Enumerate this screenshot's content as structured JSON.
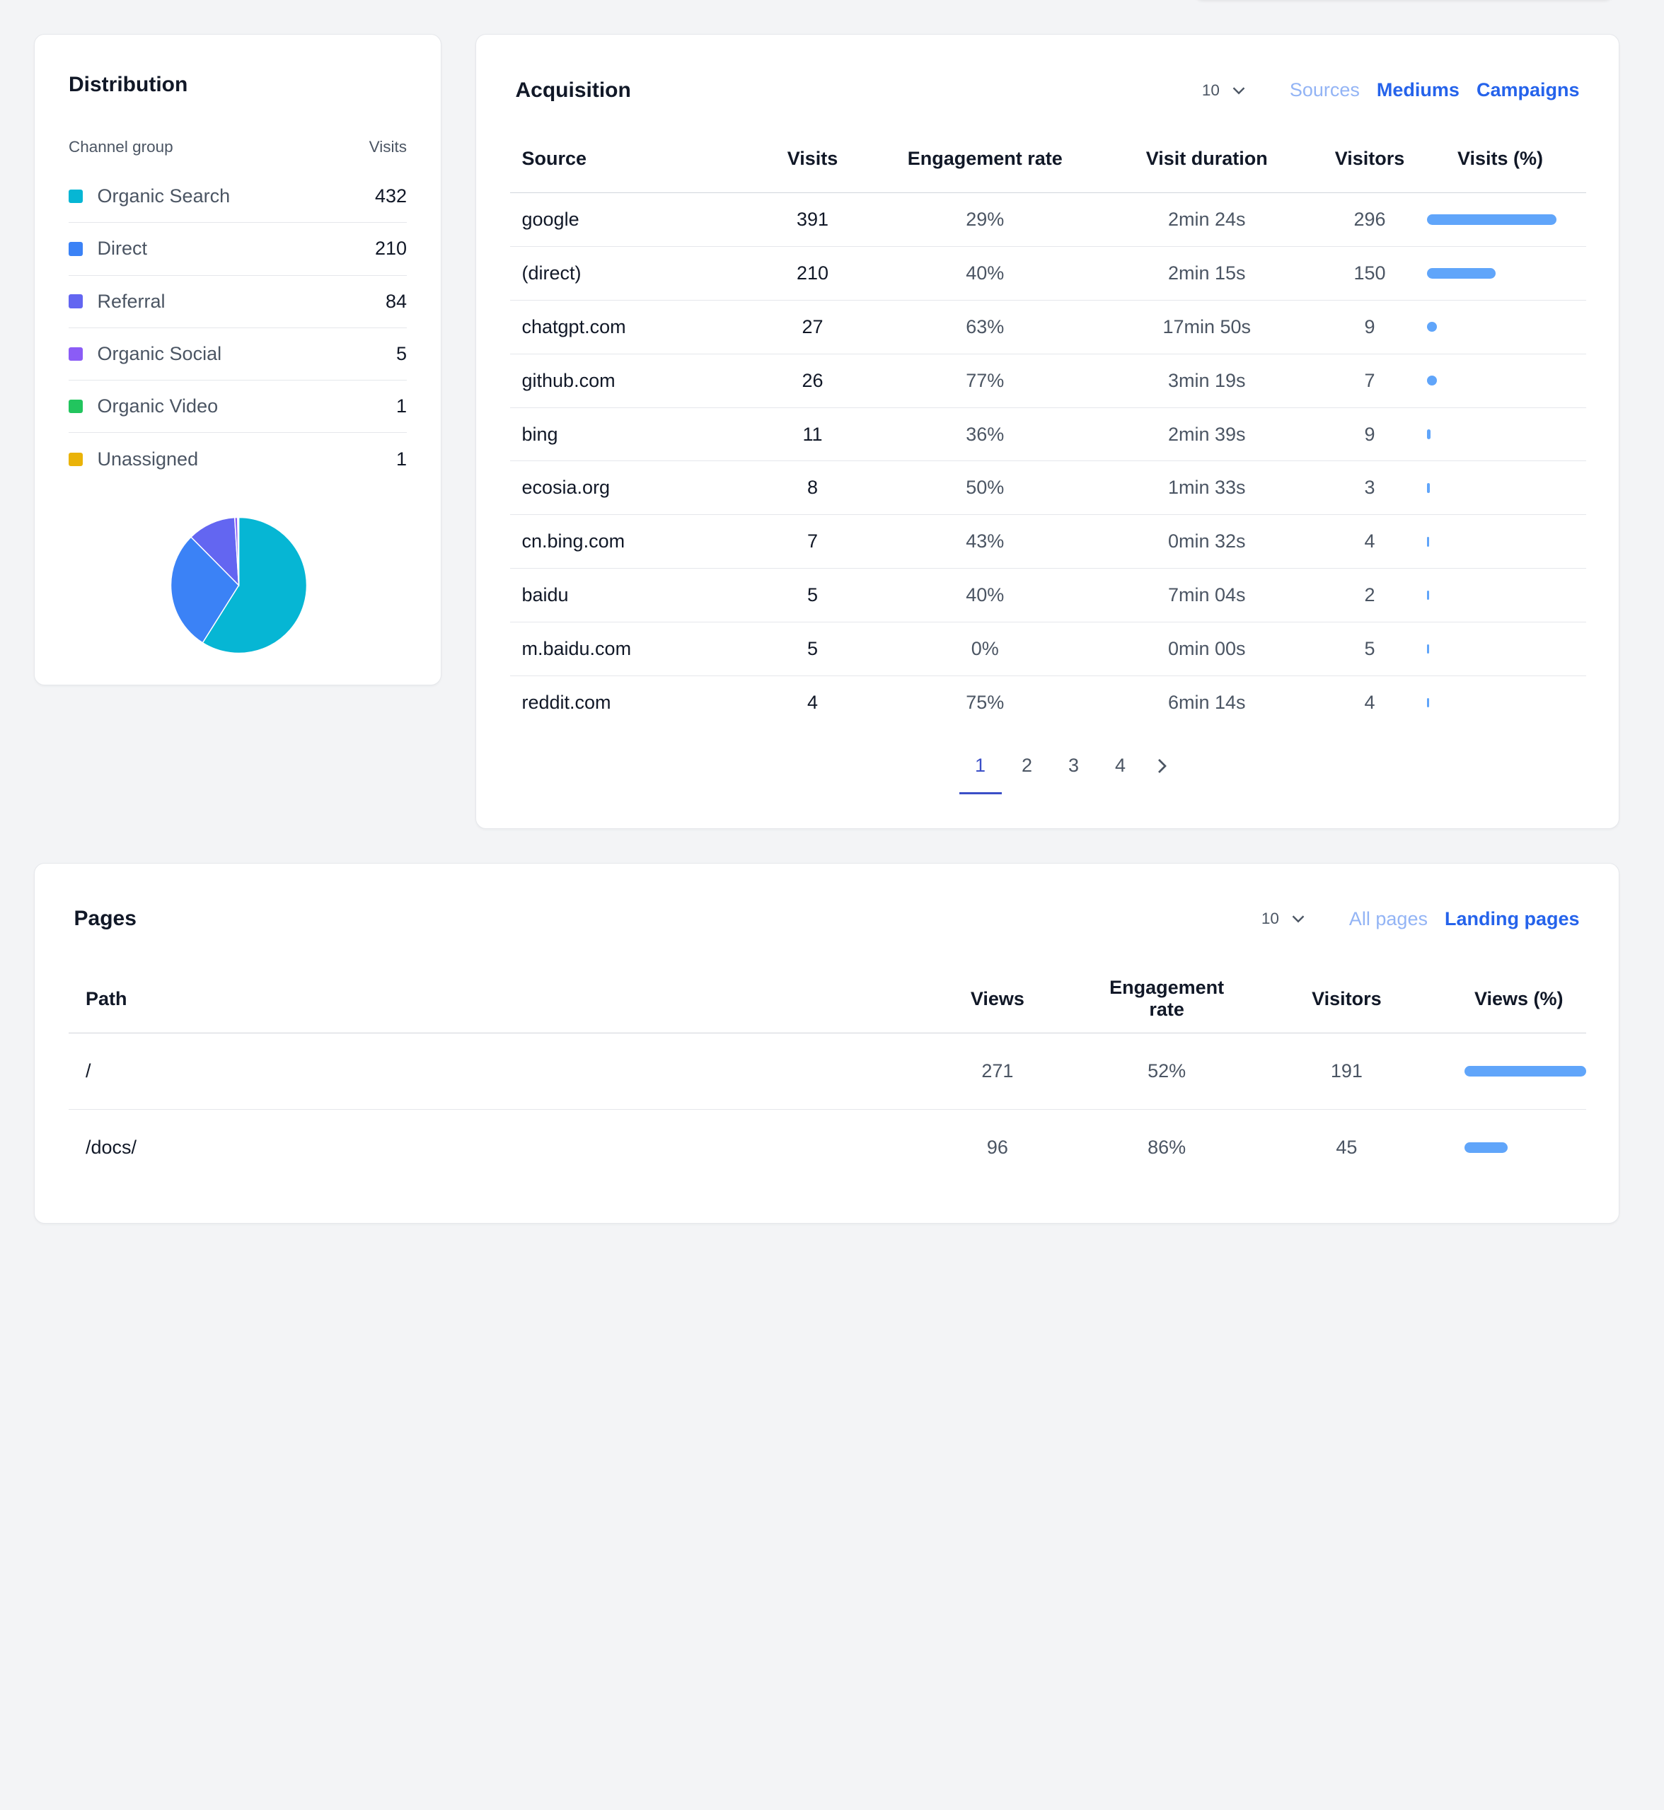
{
  "distribution": {
    "title": "Distribution",
    "col_channel": "Channel group",
    "col_visits": "Visits",
    "items": [
      {
        "name": "Organic Search",
        "value": "432",
        "color": "#06b6d4"
      },
      {
        "name": "Direct",
        "value": "210",
        "color": "#3b82f6"
      },
      {
        "name": "Referral",
        "value": "84",
        "color": "#6366f1"
      },
      {
        "name": "Organic Social",
        "value": "5",
        "color": "#8b5cf6"
      },
      {
        "name": "Organic Video",
        "value": "1",
        "color": "#22c55e"
      },
      {
        "name": "Unassigned",
        "value": "1",
        "color": "#eab308"
      }
    ]
  },
  "acquisition": {
    "title": "Acquisition",
    "page_size": "10",
    "tabs": [
      "Sources",
      "Mediums",
      "Campaigns"
    ],
    "columns": [
      "Source",
      "Visits",
      "Engagement rate",
      "Visit duration",
      "Visitors",
      "Visits (%)"
    ],
    "rows": [
      {
        "source": "google",
        "visits": "391",
        "engagement": "29%",
        "duration": "2min 24s",
        "visitors": "296",
        "pct": 0.53
      },
      {
        "source": "(direct)",
        "visits": "210",
        "engagement": "40%",
        "duration": "2min 15s",
        "visitors": "150",
        "pct": 0.28
      },
      {
        "source": "chatgpt.com",
        "visits": "27",
        "engagement": "63%",
        "duration": "17min 50s",
        "visitors": "9",
        "pct": 0.04
      },
      {
        "source": "github.com",
        "visits": "26",
        "engagement": "77%",
        "duration": "3min 19s",
        "visitors": "7",
        "pct": 0.04
      },
      {
        "source": "bing",
        "visits": "11",
        "engagement": "36%",
        "duration": "2min 39s",
        "visitors": "9",
        "pct": 0.015
      },
      {
        "source": "ecosia.org",
        "visits": "8",
        "engagement": "50%",
        "duration": "1min 33s",
        "visitors": "3",
        "pct": 0.011
      },
      {
        "source": "cn.bing.com",
        "visits": "7",
        "engagement": "43%",
        "duration": "0min 32s",
        "visitors": "4",
        "pct": 0.01
      },
      {
        "source": "baidu",
        "visits": "5",
        "engagement": "40%",
        "duration": "7min 04s",
        "visitors": "2",
        "pct": 0.007
      },
      {
        "source": "m.baidu.com",
        "visits": "5",
        "engagement": "0%",
        "duration": "0min 00s",
        "visitors": "5",
        "pct": 0.007
      },
      {
        "source": "reddit.com",
        "visits": "4",
        "engagement": "75%",
        "duration": "6min 14s",
        "visitors": "4",
        "pct": 0.005
      }
    ],
    "pagination": {
      "pages": [
        "1",
        "2",
        "3",
        "4"
      ],
      "current": "1"
    }
  },
  "pages": {
    "title": "Pages",
    "page_size": "10",
    "tabs": [
      "All pages",
      "Landing pages"
    ],
    "columns": [
      "Path",
      "Views",
      "Engagement rate",
      "Visitors",
      "Views (%)"
    ],
    "rows": [
      {
        "path": "/",
        "views": "271",
        "engagement": "52%",
        "visitors": "191",
        "pct": 0.42
      },
      {
        "path": "/docs/",
        "views": "96",
        "engagement": "86%",
        "visitors": "45",
        "pct": 0.15
      }
    ]
  },
  "colors": {
    "accent": "#2563eb",
    "bar": "#60a5fa",
    "pager_active": "#3b4fc7"
  }
}
